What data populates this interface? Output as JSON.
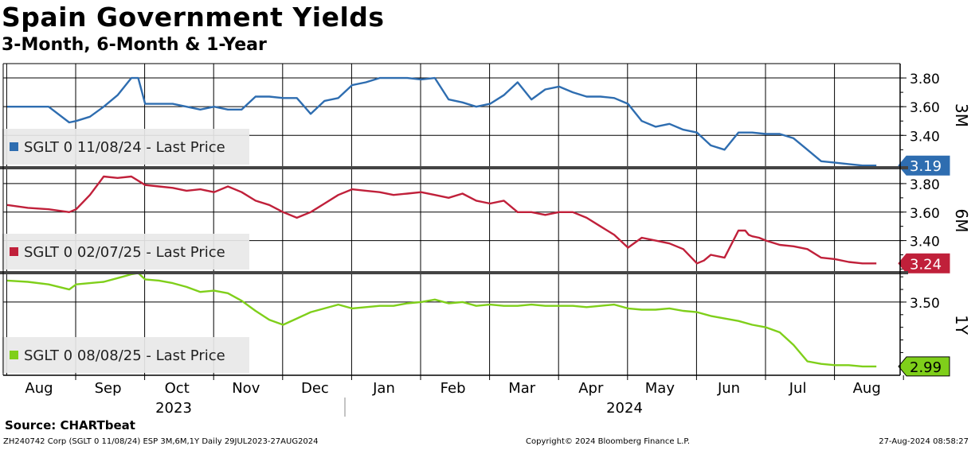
{
  "title": "Spain Government Yields",
  "subtitle": "3-Month, 6-Month & 1-Year",
  "source": "Source: CHARTbeat",
  "footer": {
    "left": "ZH240742 Corp (SGLT 0 11/08/24) ESP 3M,6M,1Y  Daily 29JUL2023-27AUG2024",
    "center": "Copyright© 2024 Bloomberg Finance L.P.",
    "right": "27-Aug-2024 08:58:27"
  },
  "colors": {
    "3M": "#2e6db0",
    "6M": "#c0203a",
    "1Y": "#7fcf1a"
  },
  "chart_data": {
    "type": "line",
    "x_labels": [
      "Aug",
      "Sep",
      "Oct",
      "Nov",
      "Dec",
      "Jan",
      "Feb",
      "Mar",
      "Apr",
      "May",
      "Jun",
      "Jul",
      "Aug"
    ],
    "year_labels": [
      "2023",
      "2024"
    ],
    "date_range": "29JUL2023-27AUG2024",
    "panels": [
      {
        "id": "3M",
        "label": "3M",
        "legend": "SGLT 0 11/08/24 - Last Price",
        "last_label": "3.19",
        "ylim": [
          3.18,
          3.9
        ],
        "yticks": [
          3.4,
          3.6,
          3.8
        ],
        "ytick_labels": [
          "3.40",
          "3.60",
          "3.80"
        ],
        "x": [
          0,
          0.3,
          0.6,
          0.9,
          1.0,
          1.2,
          1.4,
          1.6,
          1.8,
          1.9,
          2.0,
          2.2,
          2.4,
          2.6,
          2.8,
          3.0,
          3.2,
          3.4,
          3.6,
          3.8,
          4.0,
          4.2,
          4.4,
          4.6,
          4.8,
          5.0,
          5.2,
          5.4,
          5.6,
          5.8,
          6.0,
          6.2,
          6.4,
          6.6,
          6.8,
          7.0,
          7.2,
          7.4,
          7.6,
          7.8,
          8.0,
          8.2,
          8.4,
          8.6,
          8.8,
          9.0,
          9.2,
          9.4,
          9.6,
          9.8,
          10.0,
          10.2,
          10.4,
          10.6,
          10.8,
          11.0,
          11.2,
          11.4,
          11.6,
          11.8,
          12.0,
          12.2,
          12.4,
          12.6
        ],
        "values": [
          3.6,
          3.6,
          3.6,
          3.49,
          3.5,
          3.53,
          3.6,
          3.68,
          3.8,
          3.8,
          3.62,
          3.62,
          3.62,
          3.6,
          3.58,
          3.6,
          3.58,
          3.58,
          3.67,
          3.67,
          3.66,
          3.66,
          3.55,
          3.64,
          3.66,
          3.75,
          3.77,
          3.8,
          3.8,
          3.8,
          3.79,
          3.8,
          3.65,
          3.63,
          3.6,
          3.62,
          3.68,
          3.77,
          3.65,
          3.72,
          3.74,
          3.7,
          3.67,
          3.67,
          3.66,
          3.62,
          3.5,
          3.46,
          3.48,
          3.44,
          3.42,
          3.33,
          3.3,
          3.42,
          3.42,
          3.41,
          3.41,
          3.38,
          3.3,
          3.22,
          3.21,
          3.2,
          3.19,
          3.19
        ]
      },
      {
        "id": "6M",
        "label": "6M",
        "legend": "SGLT 0 02/07/25 - Last Price",
        "last_label": "3.24",
        "ylim": [
          3.18,
          3.9
        ],
        "yticks": [
          3.4,
          3.6,
          3.8
        ],
        "ytick_labels": [
          "3.40",
          "3.60",
          "3.80"
        ],
        "x": [
          0,
          0.3,
          0.6,
          0.9,
          1.0,
          1.2,
          1.4,
          1.6,
          1.8,
          2.0,
          2.2,
          2.4,
          2.6,
          2.8,
          3.0,
          3.2,
          3.4,
          3.6,
          3.8,
          4.0,
          4.2,
          4.4,
          4.6,
          4.8,
          5.0,
          5.2,
          5.4,
          5.6,
          5.8,
          6.0,
          6.2,
          6.4,
          6.6,
          6.8,
          7.0,
          7.2,
          7.4,
          7.6,
          7.8,
          8.0,
          8.2,
          8.4,
          8.6,
          8.8,
          9.0,
          9.2,
          9.4,
          9.6,
          9.8,
          10.0,
          10.1,
          10.2,
          10.4,
          10.6,
          10.7,
          10.75,
          10.8,
          10.9,
          11.0,
          11.2,
          11.4,
          11.6,
          11.8,
          12.0,
          12.2,
          12.4,
          12.6
        ],
        "values": [
          3.65,
          3.63,
          3.62,
          3.6,
          3.62,
          3.72,
          3.85,
          3.84,
          3.85,
          3.79,
          3.78,
          3.77,
          3.75,
          3.76,
          3.74,
          3.78,
          3.74,
          3.68,
          3.65,
          3.6,
          3.56,
          3.6,
          3.66,
          3.72,
          3.76,
          3.75,
          3.74,
          3.72,
          3.73,
          3.74,
          3.72,
          3.7,
          3.73,
          3.68,
          3.66,
          3.68,
          3.6,
          3.6,
          3.58,
          3.6,
          3.6,
          3.56,
          3.5,
          3.44,
          3.35,
          3.42,
          3.4,
          3.38,
          3.34,
          3.24,
          3.26,
          3.3,
          3.28,
          3.47,
          3.47,
          3.44,
          3.43,
          3.42,
          3.4,
          3.37,
          3.36,
          3.34,
          3.28,
          3.27,
          3.25,
          3.24,
          3.24
        ]
      },
      {
        "id": "1Y",
        "label": "1Y",
        "legend": "SGLT 0 08/08/25 - Last Price",
        "last_label": "2.99",
        "ylim": [
          2.92,
          3.72
        ],
        "yticks": [
          3.5
        ],
        "ytick_labels": [
          "3.50"
        ],
        "x": [
          0,
          0.3,
          0.6,
          0.9,
          1.0,
          1.2,
          1.4,
          1.6,
          1.8,
          1.9,
          2.0,
          2.2,
          2.4,
          2.6,
          2.8,
          3.0,
          3.2,
          3.4,
          3.6,
          3.8,
          4.0,
          4.2,
          4.4,
          4.6,
          4.8,
          5.0,
          5.2,
          5.4,
          5.6,
          5.8,
          6.0,
          6.2,
          6.4,
          6.6,
          6.8,
          7.0,
          7.2,
          7.4,
          7.6,
          7.8,
          8.0,
          8.2,
          8.4,
          8.6,
          8.8,
          9.0,
          9.2,
          9.4,
          9.6,
          9.8,
          10.0,
          10.2,
          10.4,
          10.6,
          10.8,
          11.0,
          11.2,
          11.4,
          11.6,
          11.8,
          12.0,
          12.2,
          12.4,
          12.6
        ],
        "values": [
          3.67,
          3.66,
          3.64,
          3.6,
          3.64,
          3.65,
          3.66,
          3.69,
          3.72,
          3.73,
          3.68,
          3.67,
          3.65,
          3.62,
          3.58,
          3.59,
          3.57,
          3.51,
          3.43,
          3.36,
          3.32,
          3.37,
          3.42,
          3.45,
          3.48,
          3.45,
          3.46,
          3.47,
          3.47,
          3.49,
          3.5,
          3.52,
          3.49,
          3.5,
          3.47,
          3.48,
          3.47,
          3.47,
          3.48,
          3.47,
          3.47,
          3.47,
          3.46,
          3.47,
          3.48,
          3.45,
          3.44,
          3.44,
          3.45,
          3.43,
          3.42,
          3.39,
          3.37,
          3.35,
          3.32,
          3.3,
          3.26,
          3.16,
          3.03,
          3.01,
          3.0,
          3.0,
          2.99,
          2.99
        ]
      }
    ]
  }
}
